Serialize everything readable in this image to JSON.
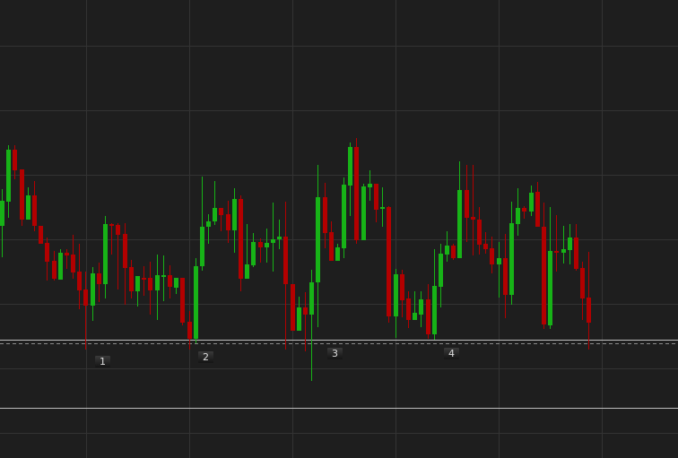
{
  "chart_data": {
    "type": "candlestick",
    "title": "",
    "xlabel": "",
    "ylabel": "",
    "grid": true,
    "ylim": [
      0,
      511
    ],
    "colors": {
      "background": "#1e1e1e",
      "grid": "#333333",
      "up": "#17b317",
      "down": "#b30000",
      "reference_line": "#bdbdbd",
      "dashed_line": "#8a8a8a"
    },
    "reference_lines": [
      {
        "value": 132,
        "style": "solid"
      },
      {
        "value": 128,
        "style": "dashed"
      },
      {
        "value": 56,
        "style": "solid"
      }
    ],
    "candles_ohlc": [
      [
        259,
        300,
        224,
        287
      ],
      [
        286,
        349,
        268,
        344
      ],
      [
        344,
        349,
        311,
        321
      ],
      [
        322,
        322,
        259,
        266
      ],
      [
        266,
        302,
        266,
        293
      ],
      [
        293,
        309,
        253,
        259
      ],
      [
        259,
        259,
        239,
        239
      ],
      [
        240,
        246,
        198,
        219
      ],
      [
        220,
        231,
        198,
        200
      ],
      [
        199,
        233,
        199,
        229
      ],
      [
        229,
        233,
        211,
        226
      ],
      [
        227,
        249,
        200,
        207
      ],
      [
        208,
        239,
        166,
        187
      ],
      [
        188,
        208,
        121,
        170
      ],
      [
        170,
        213,
        153,
        206
      ],
      [
        206,
        218,
        174,
        194
      ],
      [
        194,
        270,
        178,
        261
      ],
      [
        261,
        262,
        227,
        259
      ],
      [
        260,
        262,
        188,
        249
      ],
      [
        250,
        262,
        171,
        212
      ],
      [
        213,
        221,
        178,
        186
      ],
      [
        186,
        203,
        169,
        203
      ],
      [
        201,
        214,
        181,
        199
      ],
      [
        201,
        219,
        160,
        187
      ],
      [
        187,
        227,
        154,
        204
      ],
      [
        203,
        226,
        175,
        204
      ],
      [
        204,
        215,
        178,
        191
      ],
      [
        190,
        201,
        183,
        201
      ],
      [
        201,
        201,
        148,
        151
      ],
      [
        152,
        164,
        121,
        133
      ],
      [
        133,
        223,
        128,
        214
      ],
      [
        214,
        314,
        209,
        258
      ],
      [
        258,
        272,
        239,
        264
      ],
      [
        264,
        309,
        260,
        279
      ],
      [
        279,
        279,
        253,
        271
      ],
      [
        272,
        287,
        240,
        254
      ],
      [
        254,
        301,
        229,
        289
      ],
      [
        289,
        293,
        186,
        200
      ],
      [
        200,
        261,
        200,
        216
      ],
      [
        215,
        251,
        213,
        241
      ],
      [
        241,
        245,
        218,
        235
      ],
      [
        235,
        256,
        218,
        240
      ],
      [
        240,
        285,
        208,
        244
      ],
      [
        244,
        266,
        233,
        247
      ],
      [
        247,
        286,
        121,
        194
      ],
      [
        194,
        194,
        142,
        142
      ],
      [
        142,
        180,
        142,
        168
      ],
      [
        168,
        185,
        119,
        160
      ],
      [
        160,
        210,
        86,
        196
      ],
      [
        196,
        327,
        146,
        291
      ],
      [
        291,
        307,
        234,
        251
      ],
      [
        252,
        264,
        220,
        220
      ],
      [
        220,
        239,
        220,
        235
      ],
      [
        234,
        313,
        223,
        305
      ],
      [
        304,
        352,
        270,
        347
      ],
      [
        347,
        357,
        239,
        243
      ],
      [
        243,
        306,
        243,
        303
      ],
      [
        302,
        321,
        287,
        306
      ],
      [
        306,
        306,
        263,
        277
      ],
      [
        278,
        302,
        258,
        280
      ],
      [
        280,
        281,
        151,
        158
      ],
      [
        158,
        211,
        134,
        205
      ],
      [
        205,
        210,
        157,
        176
      ],
      [
        178,
        186,
        145,
        154
      ],
      [
        154,
        186,
        154,
        162
      ],
      [
        160,
        186,
        146,
        177
      ],
      [
        177,
        194,
        133,
        138
      ],
      [
        138,
        233,
        132,
        192
      ],
      [
        191,
        239,
        168,
        228
      ],
      [
        227,
        253,
        219,
        237
      ],
      [
        237,
        239,
        221,
        223
      ],
      [
        223,
        331,
        223,
        299
      ],
      [
        299,
        327,
        241,
        268
      ],
      [
        269,
        327,
        226,
        266
      ],
      [
        266,
        280,
        227,
        238
      ],
      [
        239,
        252,
        228,
        233
      ],
      [
        234,
        247,
        206,
        216
      ],
      [
        216,
        241,
        179,
        223
      ],
      [
        223,
        250,
        156,
        182
      ],
      [
        182,
        286,
        171,
        262
      ],
      [
        261,
        301,
        248,
        279
      ],
      [
        279,
        281,
        267,
        275
      ],
      [
        275,
        304,
        270,
        296
      ],
      [
        297,
        308,
        258,
        258
      ],
      [
        258,
        285,
        144,
        149
      ],
      [
        148,
        280,
        144,
        231
      ],
      [
        231,
        271,
        208,
        229
      ],
      [
        229,
        259,
        217,
        233
      ],
      [
        232,
        261,
        216,
        246
      ],
      [
        246,
        261,
        209,
        211
      ],
      [
        212,
        219,
        154,
        178
      ],
      [
        179,
        230,
        121,
        151
      ]
    ],
    "markers": [
      {
        "label": "1",
        "candle": 15
      },
      {
        "label": "2",
        "candle": 31
      },
      {
        "label": "3",
        "candle": 51
      },
      {
        "label": "4",
        "candle": 69
      }
    ]
  }
}
